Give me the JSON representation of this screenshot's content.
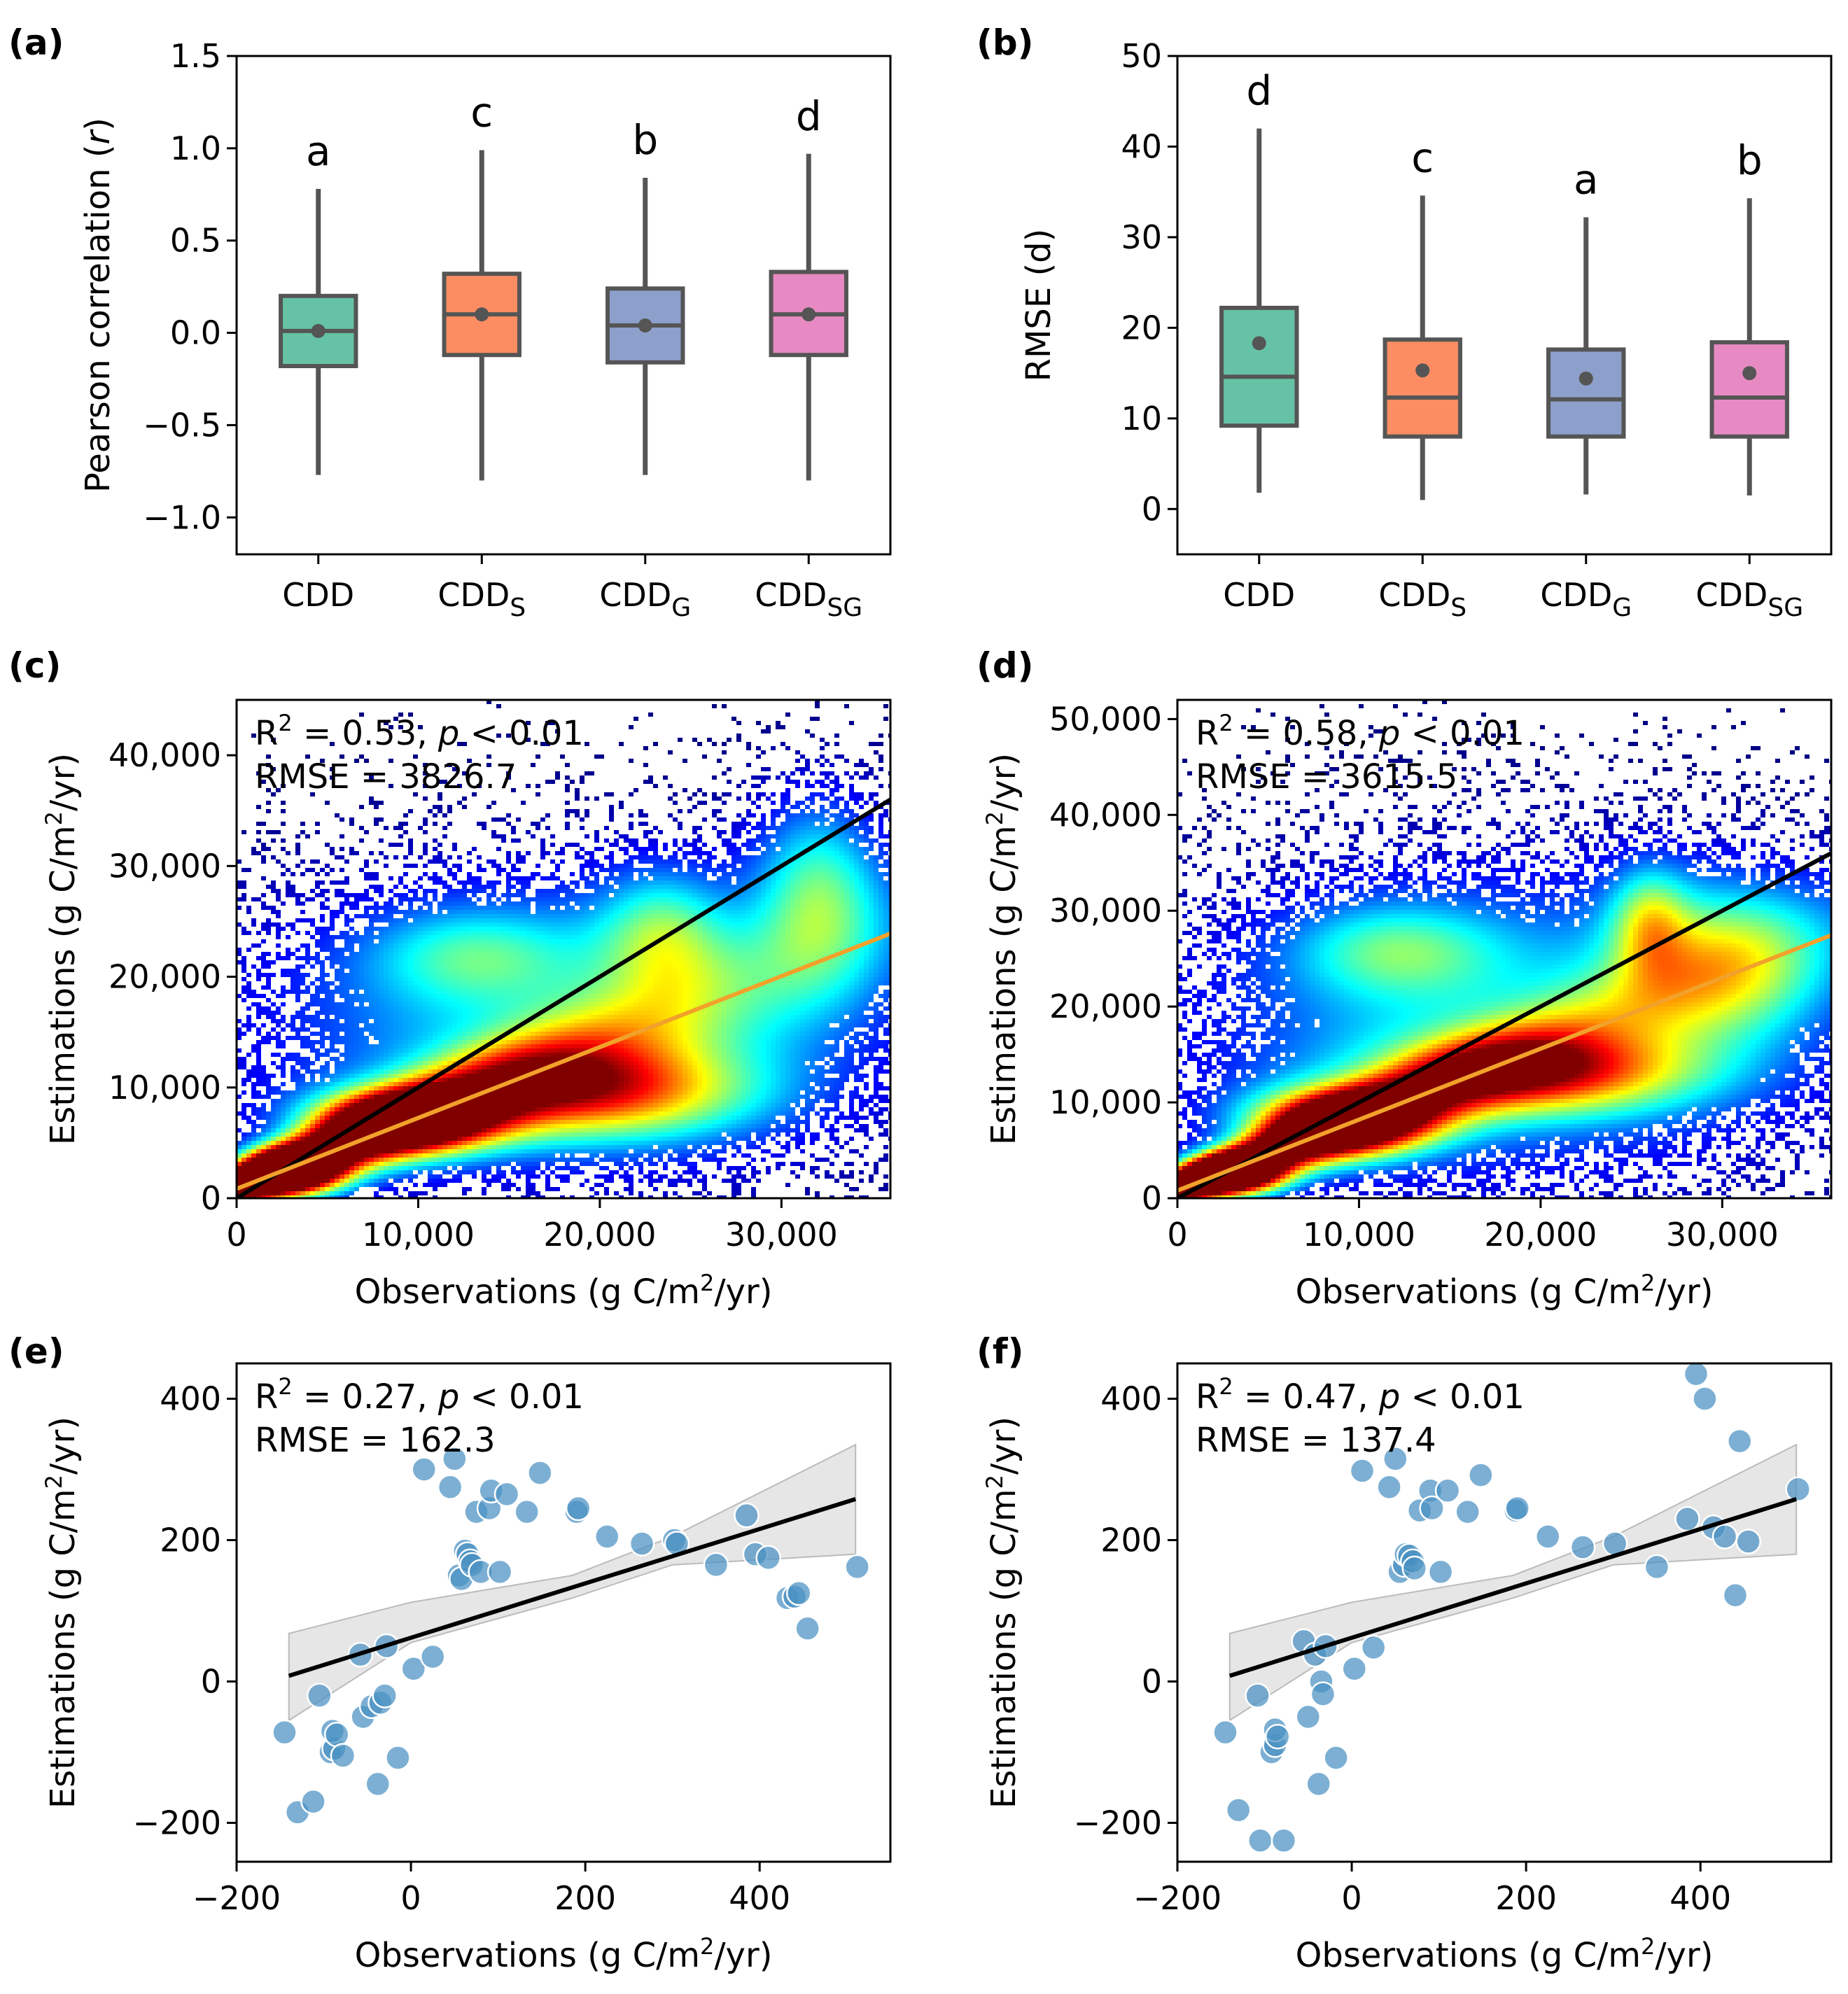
{
  "chart_data": [
    {
      "id": "a",
      "panel_label": "(a)",
      "type": "box",
      "ylabel_parts": [
        "Pearson correlation (",
        "r",
        ")"
      ],
      "ylim": [
        -1.2,
        1.5
      ],
      "yticks": [
        -1.0,
        -0.5,
        0.0,
        0.5,
        1.0,
        1.5
      ],
      "ytick_labels": [
        "−1.0",
        "−0.5",
        "0.0",
        "0.5",
        "1.0",
        "1.5"
      ],
      "categories": [
        {
          "main": "CDD",
          "sub": ""
        },
        {
          "main": "CDD",
          "sub": "S"
        },
        {
          "main": "CDD",
          "sub": "G"
        },
        {
          "main": "CDD",
          "sub": "SG"
        }
      ],
      "colors": [
        "#66c2a5",
        "#fc8d62",
        "#8da0cb",
        "#e78ac3"
      ],
      "boxes": [
        {
          "min": -0.77,
          "q1": -0.18,
          "median": 0.01,
          "q3": 0.2,
          "max": 0.78,
          "mean": 0.01
        },
        {
          "min": -0.8,
          "q1": -0.12,
          "median": 0.1,
          "q3": 0.32,
          "max": 0.99,
          "mean": 0.1
        },
        {
          "min": -0.77,
          "q1": -0.16,
          "median": 0.04,
          "q3": 0.24,
          "max": 0.84,
          "mean": 0.04
        },
        {
          "min": -0.8,
          "q1": -0.12,
          "median": 0.1,
          "q3": 0.33,
          "max": 0.97,
          "mean": 0.1
        }
      ],
      "group_letters": [
        "a",
        "c",
        "b",
        "d"
      ]
    },
    {
      "id": "b",
      "panel_label": "(b)",
      "type": "box",
      "ylabel_parts": [
        "RMSE (d)"
      ],
      "ylim": [
        -5,
        50
      ],
      "yticks": [
        0,
        10,
        20,
        30,
        40,
        50
      ],
      "ytick_labels": [
        "0",
        "10",
        "20",
        "30",
        "40",
        "50"
      ],
      "categories": [
        {
          "main": "CDD",
          "sub": ""
        },
        {
          "main": "CDD",
          "sub": "S"
        },
        {
          "main": "CDD",
          "sub": "G"
        },
        {
          "main": "CDD",
          "sub": "SG"
        }
      ],
      "colors": [
        "#66c2a5",
        "#fc8d62",
        "#8da0cb",
        "#e78ac3"
      ],
      "boxes": [
        {
          "min": 1.8,
          "q1": 9.2,
          "median": 14.6,
          "q3": 22.2,
          "max": 42.0,
          "mean": 18.3
        },
        {
          "min": 1.0,
          "q1": 8.0,
          "median": 12.3,
          "q3": 18.7,
          "max": 34.6,
          "mean": 15.3
        },
        {
          "min": 1.6,
          "q1": 8.0,
          "median": 12.1,
          "q3": 17.6,
          "max": 32.2,
          "mean": 14.4
        },
        {
          "min": 1.5,
          "q1": 8.0,
          "median": 12.3,
          "q3": 18.4,
          "max": 34.3,
          "mean": 15.0
        }
      ],
      "group_letters": [
        "d",
        "c",
        "a",
        "b"
      ]
    },
    {
      "id": "c",
      "panel_label": "(c)",
      "type": "heatmap",
      "xlabel": "Observations (g C/m²/yr)",
      "ylabel": "Estimations (g C/m²/yr)",
      "xlim": [
        0,
        36000
      ],
      "ylim": [
        0,
        45000
      ],
      "xticks": [
        0,
        10000,
        20000,
        30000
      ],
      "xtick_labels": [
        "0",
        "10,000",
        "20,000",
        "30,000"
      ],
      "yticks": [
        0,
        10000,
        20000,
        30000,
        40000
      ],
      "ytick_labels": [
        "0",
        "10,000",
        "20,000",
        "30,000",
        "40,000"
      ],
      "r2_value": "0.53",
      "p_text": "< 0.01",
      "rmse_text": "3826.7",
      "fit_line": {
        "slope": 0.64,
        "intercept": 850
      },
      "one_to_one": true,
      "clusters": [
        {
          "x": 18000,
          "y": 16000,
          "sx": 12000,
          "sy": 9000,
          "w": 0.35
        },
        {
          "x": 32000,
          "y": 28000,
          "sx": 2500,
          "sy": 6000,
          "w": 0.4
        },
        {
          "x": 23500,
          "y": 24000,
          "sx": 2500,
          "sy": 4000,
          "w": 0.35
        },
        {
          "x": 13000,
          "y": 22000,
          "sx": 4000,
          "sy": 3000,
          "w": 0.25
        },
        {
          "x": 20000,
          "y": 9500,
          "sx": 6000,
          "sy": 3000,
          "w": 0.6
        },
        {
          "x": 9000,
          "y": 7000,
          "sx": 3500,
          "sy": 2000,
          "w": 1.0
        },
        {
          "x": 3000,
          "y": 2500,
          "sx": 2000,
          "sy": 1500,
          "w": 1.0
        }
      ]
    },
    {
      "id": "d",
      "panel_label": "(d)",
      "type": "heatmap",
      "xlabel": "Observations (g C/m²/yr)",
      "ylabel": "Estimations (g C/m²/yr)",
      "xlim": [
        0,
        36000
      ],
      "ylim": [
        0,
        52000
      ],
      "xticks": [
        0,
        10000,
        20000,
        30000
      ],
      "xtick_labels": [
        "0",
        "10,000",
        "20,000",
        "30,000"
      ],
      "yticks": [
        0,
        10000,
        20000,
        30000,
        40000,
        50000
      ],
      "ytick_labels": [
        "0",
        "10,000",
        "20,000",
        "30,000",
        "40,000",
        "50,000"
      ],
      "r2_value": "0.58",
      "p_text": "< 0.01",
      "rmse_text": "3615.5",
      "fit_line": {
        "slope": 0.74,
        "intercept": 800
      },
      "one_to_one": true,
      "clusters": [
        {
          "x": 18000,
          "y": 18000,
          "sx": 12000,
          "sy": 11000,
          "w": 0.35
        },
        {
          "x": 30000,
          "y": 25000,
          "sx": 4000,
          "sy": 6000,
          "w": 0.4
        },
        {
          "x": 26000,
          "y": 29000,
          "sx": 1500,
          "sy": 4000,
          "w": 0.35
        },
        {
          "x": 12000,
          "y": 26000,
          "sx": 4000,
          "sy": 3500,
          "w": 0.3
        },
        {
          "x": 20000,
          "y": 13000,
          "sx": 6000,
          "sy": 3000,
          "w": 0.6
        },
        {
          "x": 9000,
          "y": 8000,
          "sx": 3500,
          "sy": 2500,
          "w": 1.0
        },
        {
          "x": 3000,
          "y": 2500,
          "sx": 2000,
          "sy": 1500,
          "w": 1.0
        }
      ]
    },
    {
      "id": "e",
      "panel_label": "(e)",
      "type": "scatter",
      "xlabel": "Observations (g C/m²/yr)",
      "ylabel": "Estimations (g C/m²/yr)",
      "xlim": [
        -200,
        550
      ],
      "ylim": [
        -255,
        450
      ],
      "xticks": [
        -200,
        0,
        200,
        400
      ],
      "xtick_labels": [
        "−200",
        "0",
        "200",
        "400"
      ],
      "yticks": [
        -200,
        0,
        200,
        400
      ],
      "ytick_labels": [
        "−200",
        "0",
        "200",
        "400"
      ],
      "r2_value": "0.27",
      "p_text": "< 0.01",
      "rmse_text": "162.3",
      "fit_line": {
        "x0": -140,
        "y0": 8,
        "x1": 510,
        "y1": 258
      },
      "ci_band": {
        "x": [
          -140,
          0,
          185,
          300,
          510
        ],
        "upper": [
          68,
          112,
          150,
          205,
          335
        ],
        "lower": [
          -55,
          55,
          118,
          165,
          180
        ]
      },
      "point_color": "#4a90c2",
      "points": [
        [
          -145,
          -72
        ],
        [
          -130,
          -185
        ],
        [
          -112,
          -170
        ],
        [
          -105,
          -20
        ],
        [
          -92,
          -100
        ],
        [
          -88,
          -95
        ],
        [
          -90,
          -70
        ],
        [
          -85,
          -75
        ],
        [
          -78,
          -105
        ],
        [
          -58,
          38
        ],
        [
          -55,
          -50
        ],
        [
          -45,
          -35
        ],
        [
          -38,
          -145
        ],
        [
          -35,
          -30
        ],
        [
          -30,
          -20
        ],
        [
          -28,
          50
        ],
        [
          -15,
          -108
        ],
        [
          3,
          18
        ],
        [
          15,
          300
        ],
        [
          25,
          35
        ],
        [
          45,
          275
        ],
        [
          50,
          315
        ],
        [
          55,
          150
        ],
        [
          58,
          145
        ],
        [
          62,
          185
        ],
        [
          65,
          180
        ],
        [
          68,
          170
        ],
        [
          70,
          165
        ],
        [
          75,
          240
        ],
        [
          80,
          155
        ],
        [
          90,
          245
        ],
        [
          92,
          270
        ],
        [
          102,
          155
        ],
        [
          110,
          265
        ],
        [
          133,
          240
        ],
        [
          148,
          295
        ],
        [
          190,
          240
        ],
        [
          192,
          245
        ],
        [
          225,
          205
        ],
        [
          265,
          195
        ],
        [
          302,
          200
        ],
        [
          305,
          195
        ],
        [
          350,
          165
        ],
        [
          385,
          235
        ],
        [
          395,
          180
        ],
        [
          410,
          175
        ],
        [
          432,
          118
        ],
        [
          440,
          120
        ],
        [
          445,
          125
        ],
        [
          455,
          75
        ],
        [
          512,
          162
        ]
      ]
    },
    {
      "id": "f",
      "panel_label": "(f)",
      "type": "scatter",
      "xlabel": "Observations (g C/m²/yr)",
      "ylabel": "Estimations (g C/m²/yr)",
      "xlim": [
        -200,
        550
      ],
      "ylim": [
        -255,
        450
      ],
      "xticks": [
        -200,
        0,
        200,
        400
      ],
      "xtick_labels": [
        "−200",
        "0",
        "200",
        "400"
      ],
      "yticks": [
        -200,
        0,
        200,
        400
      ],
      "ytick_labels": [
        "−200",
        "0",
        "200",
        "400"
      ],
      "r2_value": "0.47",
      "p_text": "< 0.01",
      "rmse_text": "137.4",
      "fit_line": {
        "x0": -140,
        "y0": 8,
        "x1": 510,
        "y1": 258
      },
      "ci_band": {
        "x": [
          -140,
          0,
          185,
          300,
          510
        ],
        "upper": [
          68,
          112,
          150,
          205,
          335
        ],
        "lower": [
          -55,
          55,
          118,
          165,
          180
        ]
      },
      "point_color": "#4a90c2",
      "points": [
        [
          -145,
          -72
        ],
        [
          -130,
          -182
        ],
        [
          -108,
          -20
        ],
        [
          -105,
          -225
        ],
        [
          -92,
          -100
        ],
        [
          -88,
          -90
        ],
        [
          -88,
          -68
        ],
        [
          -85,
          -78
        ],
        [
          -78,
          -225
        ],
        [
          -55,
          57
        ],
        [
          -50,
          -50
        ],
        [
          -42,
          38
        ],
        [
          -38,
          -145
        ],
        [
          -35,
          0
        ],
        [
          -33,
          -18
        ],
        [
          -30,
          50
        ],
        [
          -18,
          -108
        ],
        [
          3,
          18
        ],
        [
          12,
          298
        ],
        [
          25,
          48
        ],
        [
          43,
          275
        ],
        [
          50,
          315
        ],
        [
          55,
          155
        ],
        [
          60,
          165
        ],
        [
          62,
          180
        ],
        [
          66,
          178
        ],
        [
          70,
          170
        ],
        [
          72,
          160
        ],
        [
          78,
          242
        ],
        [
          90,
          270
        ],
        [
          92,
          245
        ],
        [
          102,
          155
        ],
        [
          110,
          270
        ],
        [
          133,
          240
        ],
        [
          148,
          292
        ],
        [
          188,
          242
        ],
        [
          190,
          245
        ],
        [
          225,
          205
        ],
        [
          265,
          190
        ],
        [
          302,
          195
        ],
        [
          350,
          162
        ],
        [
          385,
          230
        ],
        [
          395,
          435
        ],
        [
          405,
          400
        ],
        [
          415,
          218
        ],
        [
          428,
          205
        ],
        [
          440,
          122
        ],
        [
          445,
          340
        ],
        [
          455,
          198
        ],
        [
          512,
          272
        ]
      ]
    }
  ]
}
